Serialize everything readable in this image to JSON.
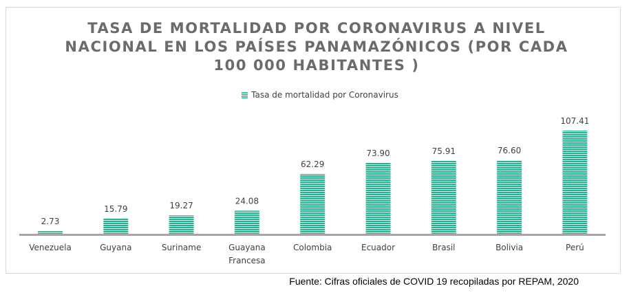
{
  "chart_data": {
    "type": "bar",
    "title": "TASA DE MORTALIDAD POR CORONAVIRUS A NIVEL NACIONAL EN LOS PAÍSES PANAMAZÓNICOS (POR CADA 100 000 HABITANTES )",
    "title_lines": [
      "TASA DE MORTALIDAD POR CORONAVIRUS A NIVEL",
      "NACIONAL EN LOS PAÍSES PANAMAZÓNICOS (POR CADA",
      "100 000 HABITANTES )"
    ],
    "categories": [
      "Venezuela",
      "Guyana",
      "Suriname",
      "Guayana Francesa",
      "Colombia",
      "Ecuador",
      "Brasil",
      "Bolivia",
      "Perú"
    ],
    "category_lines": [
      [
        "Venezuela"
      ],
      [
        "Guyana"
      ],
      [
        "Suriname"
      ],
      [
        "Guayana",
        "Francesa"
      ],
      [
        "Colombia"
      ],
      [
        "Ecuador"
      ],
      [
        "Brasil"
      ],
      [
        "Bolivia"
      ],
      [
        "Perú"
      ]
    ],
    "series": [
      {
        "name": "Tasa de mortalidad por Coronavirus",
        "values": [
          2.73,
          15.79,
          19.27,
          24.08,
          62.29,
          73.9,
          75.91,
          76.6,
          107.41
        ]
      }
    ],
    "value_labels": [
      "2.73",
      "15.79",
      "19.27",
      "24.08",
      "62.29",
      "73.90",
      "75.91",
      "76.60",
      "107.41"
    ],
    "xlabel": "",
    "ylabel": "",
    "ylim": [
      0,
      107.41
    ],
    "legend_position": "top",
    "grid": false
  },
  "colors": {
    "bar": "#1fb58e",
    "bar_stripe": "#ffffff",
    "axis": "#a6a6a6",
    "title": "#6b6b6b",
    "label": "#404040"
  },
  "source_note": "Fuente: Cifras oficiales de COVID 19 recopiladas por REPAM, 2020"
}
